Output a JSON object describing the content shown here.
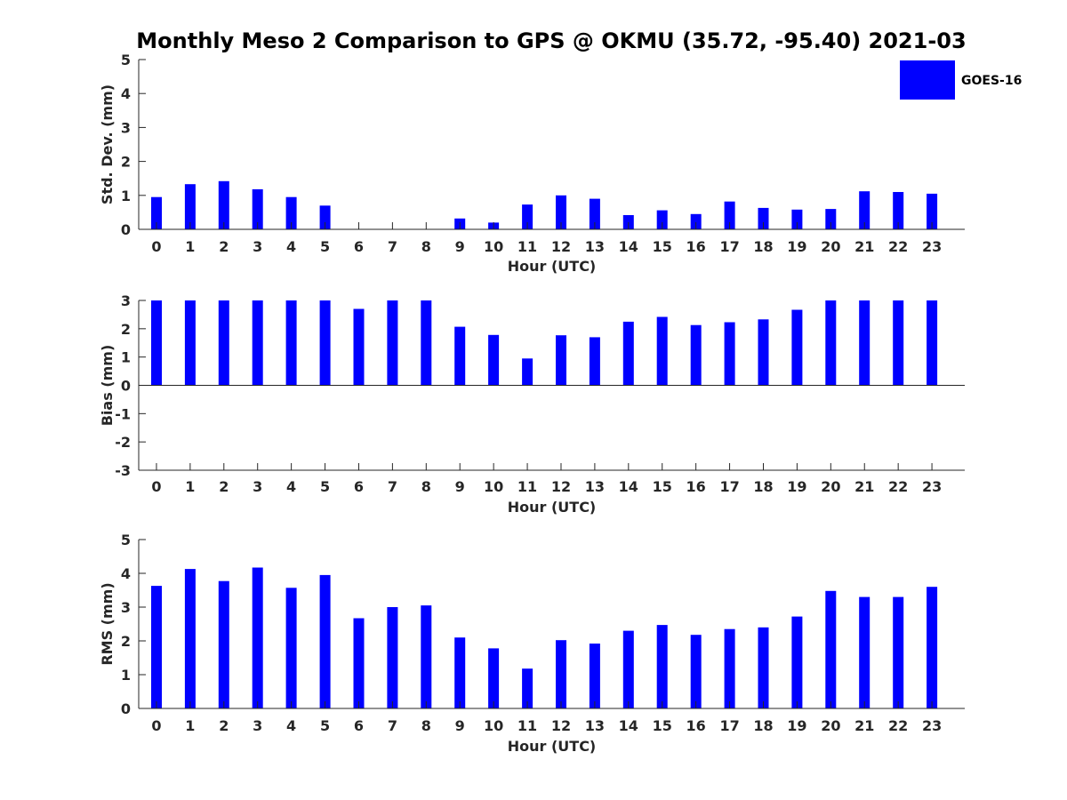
{
  "figure": {
    "title": "Monthly Meso 2 Comparison to GPS @ OKMU (35.72, -95.40) 2021-03",
    "legend_label": "GOES-16",
    "bar_color": "#0000ff"
  },
  "chart_data": [
    {
      "type": "bar",
      "title": "Monthly Meso 2 Comparison to GPS @ OKMU (35.72, -95.40) 2021-03",
      "xlabel": "Hour (UTC)",
      "ylabel": "Std. Dev. (mm)",
      "ylim": [
        0,
        5
      ],
      "yticks": [
        "0",
        "1",
        "2",
        "3",
        "4",
        "5"
      ],
      "categories": [
        "0",
        "1",
        "2",
        "3",
        "4",
        "5",
        "6",
        "7",
        "8",
        "9",
        "10",
        "11",
        "12",
        "13",
        "14",
        "15",
        "16",
        "17",
        "18",
        "19",
        "20",
        "21",
        "22",
        "23"
      ],
      "series": [
        {
          "name": "GOES-16",
          "values": [
            0.95,
            1.33,
            1.42,
            1.18,
            0.95,
            0.7,
            0,
            0,
            0,
            0.32,
            0.2,
            0.73,
            1.0,
            0.9,
            0.42,
            0.56,
            0.45,
            0.82,
            0.63,
            0.58,
            0.6,
            1.12,
            1.1,
            1.05
          ]
        }
      ],
      "legend": "top-right",
      "grid": false
    },
    {
      "type": "bar",
      "xlabel": "Hour (UTC)",
      "ylabel": "Bias (mm)",
      "ylim": [
        -3,
        3
      ],
      "yticks": [
        "-3",
        "-2",
        "-1",
        "0",
        "1",
        "2",
        "3"
      ],
      "categories": [
        "0",
        "1",
        "2",
        "3",
        "4",
        "5",
        "6",
        "7",
        "8",
        "9",
        "10",
        "11",
        "12",
        "13",
        "14",
        "15",
        "16",
        "17",
        "18",
        "19",
        "20",
        "21",
        "22",
        "23"
      ],
      "series": [
        {
          "name": "GOES-16",
          "values": [
            3.0,
            3.0,
            3.0,
            3.0,
            3.0,
            3.0,
            2.7,
            3.0,
            3.0,
            2.07,
            1.78,
            0.95,
            1.77,
            1.7,
            2.25,
            2.42,
            2.13,
            2.23,
            2.33,
            2.67,
            3.0,
            3.0,
            3.0,
            3.0
          ]
        }
      ],
      "grid": false
    },
    {
      "type": "bar",
      "xlabel": "Hour (UTC)",
      "ylabel": "RMS (mm)",
      "ylim": [
        0,
        5
      ],
      "yticks": [
        "0",
        "1",
        "2",
        "3",
        "4",
        "5"
      ],
      "categories": [
        "0",
        "1",
        "2",
        "3",
        "4",
        "5",
        "6",
        "7",
        "8",
        "9",
        "10",
        "11",
        "12",
        "13",
        "14",
        "15",
        "16",
        "17",
        "18",
        "19",
        "20",
        "21",
        "22",
        "23"
      ],
      "series": [
        {
          "name": "GOES-16",
          "values": [
            3.63,
            4.13,
            3.77,
            4.17,
            3.57,
            3.95,
            2.67,
            3.0,
            3.05,
            2.1,
            1.78,
            1.18,
            2.02,
            1.92,
            2.3,
            2.47,
            2.18,
            2.35,
            2.4,
            2.72,
            3.48,
            3.3,
            3.3,
            3.6
          ]
        }
      ],
      "grid": false
    }
  ]
}
